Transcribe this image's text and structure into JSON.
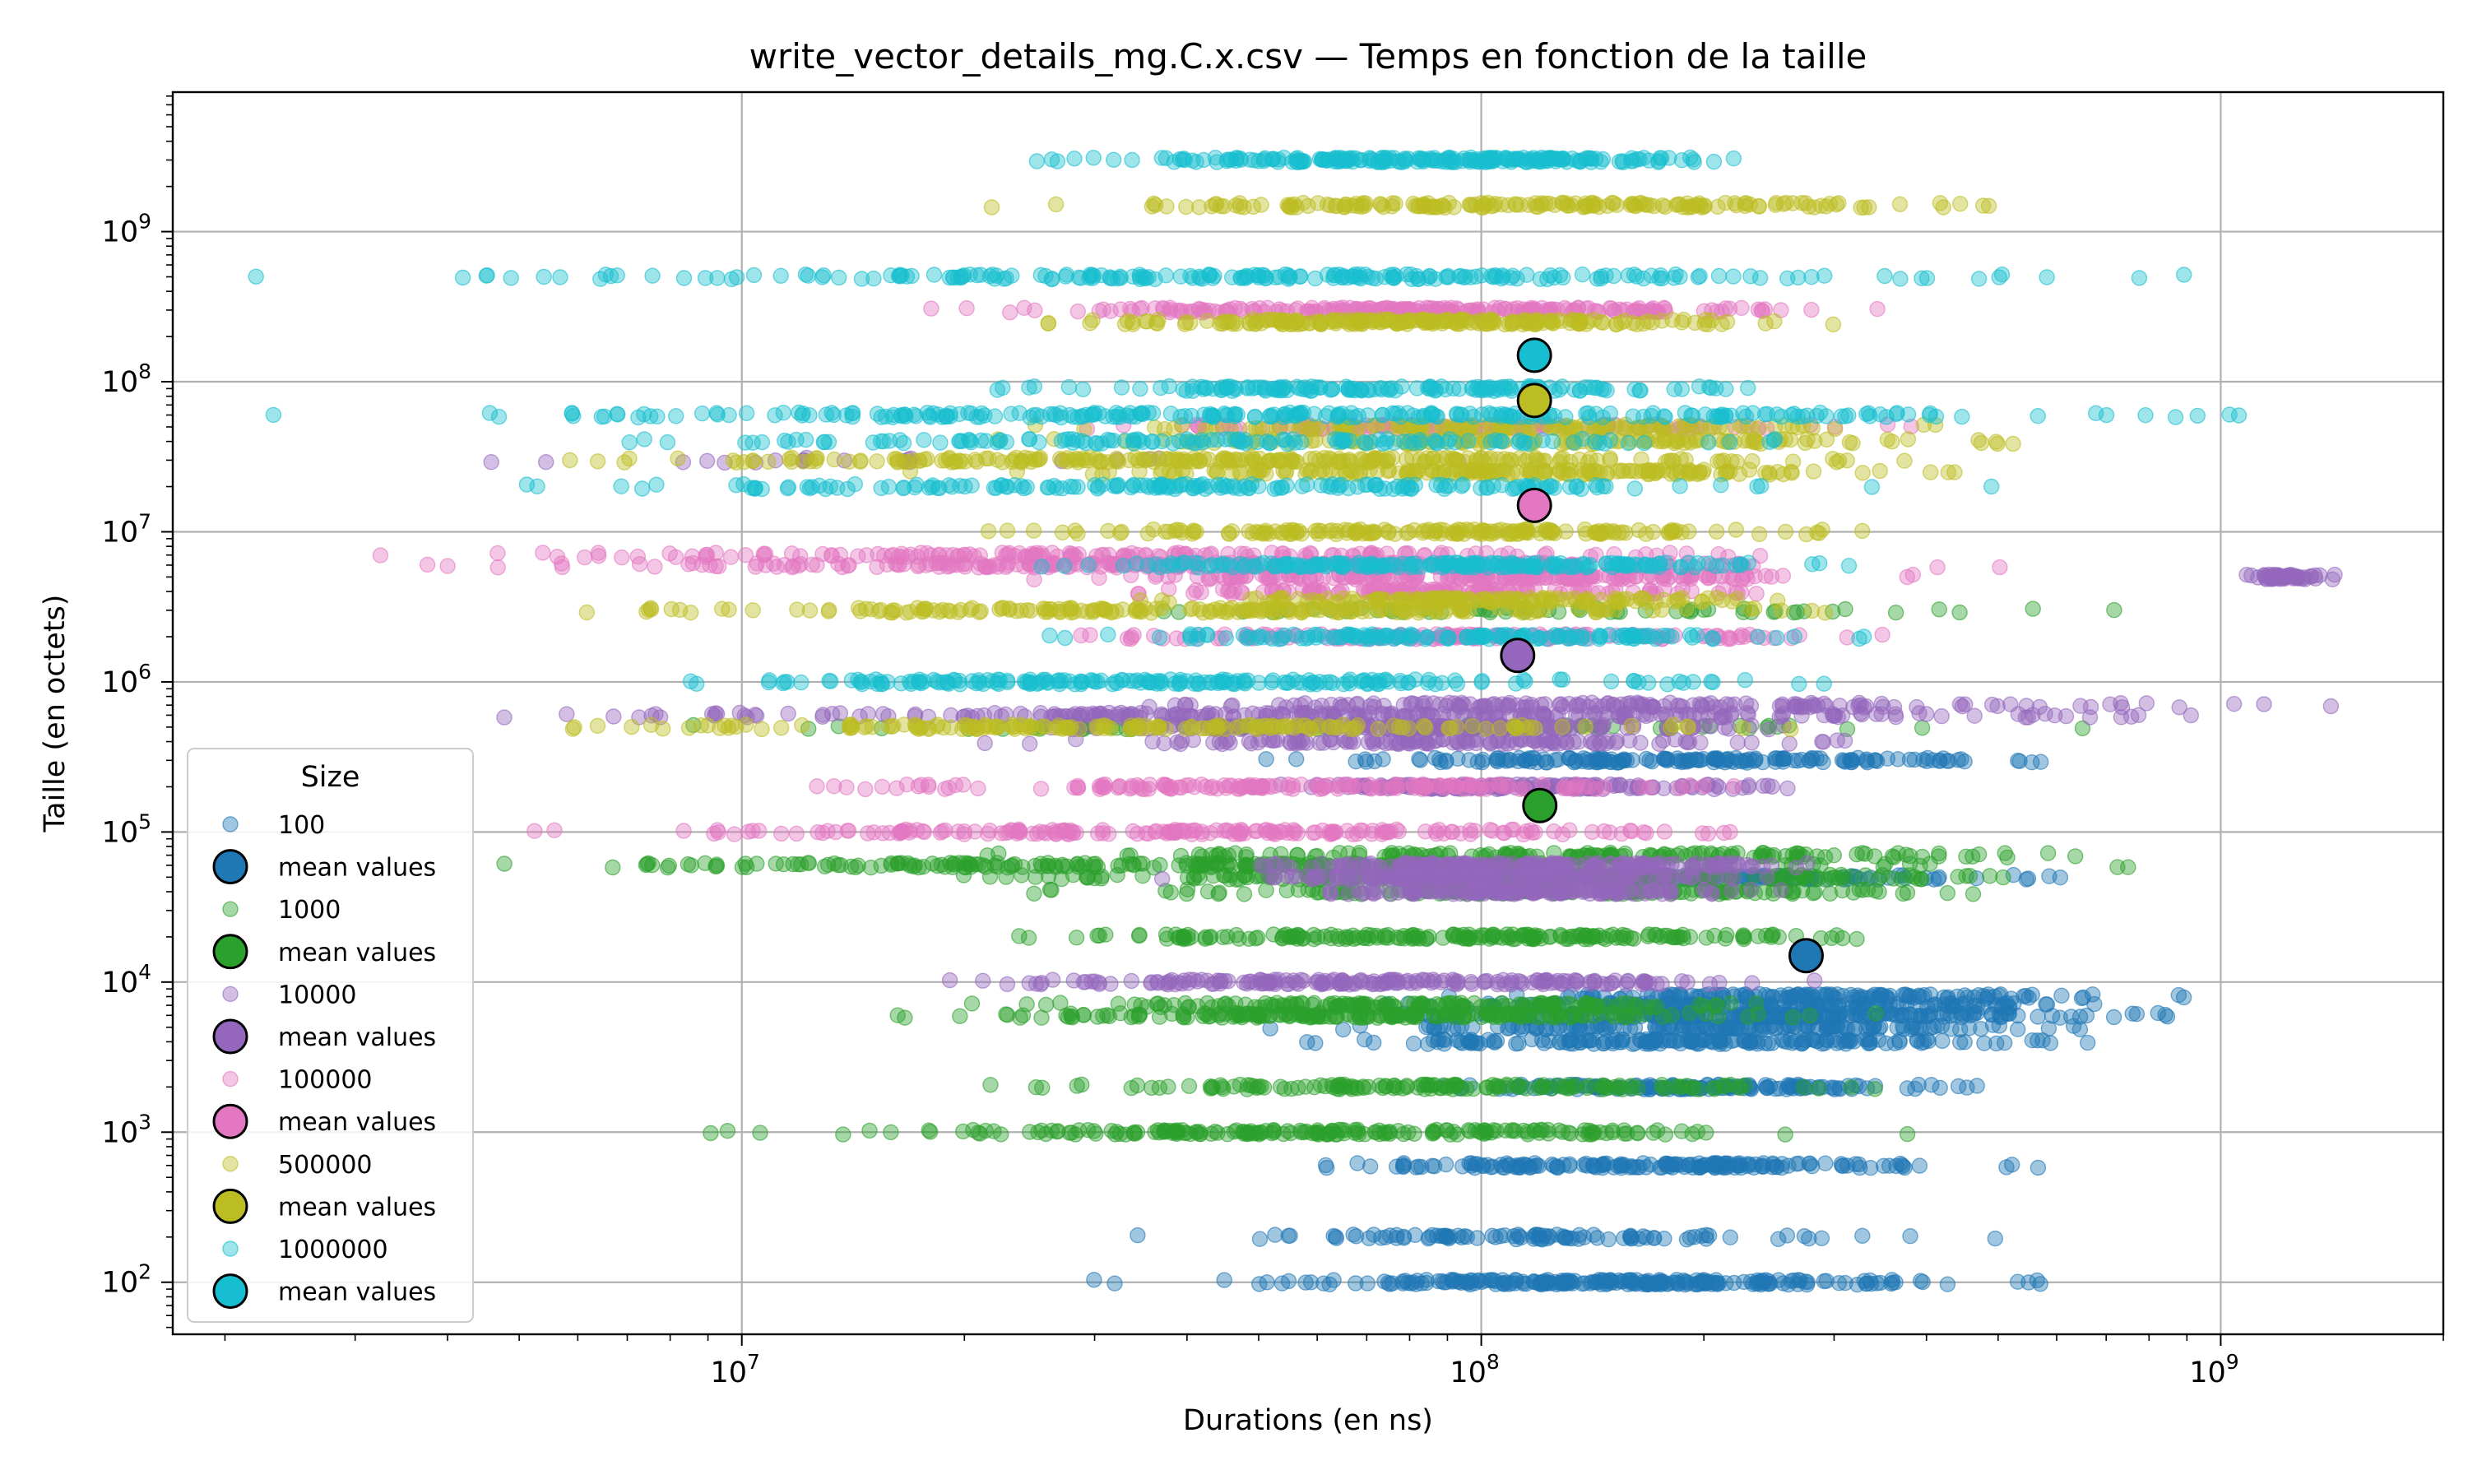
{
  "chart_data": {
    "type": "scatter",
    "title": "write_vector_details_mg.C.x.csv — Temps en fonction de la taille",
    "xlabel": "Durations (en ns)",
    "ylabel": "Taille (en octets)",
    "x_scale": "log",
    "y_scale": "log",
    "xlim": [
      1700000,
      2000000000
    ],
    "ylim": [
      45,
      8500000000
    ],
    "x_ticks": [
      {
        "value": 10000000,
        "base": "10",
        "exp": "7"
      },
      {
        "value": 100000000,
        "base": "10",
        "exp": "8"
      },
      {
        "value": 1000000000,
        "base": "10",
        "exp": "9"
      }
    ],
    "y_ticks": [
      {
        "value": 100,
        "base": "10",
        "exp": "2"
      },
      {
        "value": 1000,
        "base": "10",
        "exp": "3"
      },
      {
        "value": 10000,
        "base": "10",
        "exp": "4"
      },
      {
        "value": 100000,
        "base": "10",
        "exp": "5"
      },
      {
        "value": 1000000,
        "base": "10",
        "exp": "6"
      },
      {
        "value": 10000000,
        "base": "10",
        "exp": "7"
      },
      {
        "value": 100000000,
        "base": "10",
        "exp": "8"
      },
      {
        "value": 1000000000,
        "base": "10",
        "exp": "9"
      }
    ],
    "grid": true,
    "legend": {
      "title": "Size",
      "location": "lower-left"
    },
    "series": [
      {
        "name": "100",
        "mean_name": "mean values",
        "color": "#1f77b4",
        "mean": {
          "x": 275000000,
          "y": 15000
        },
        "bands": [
          {
            "y": 100,
            "x_min": 28000000,
            "x_max": 760000000,
            "n": 240
          },
          {
            "y": 200,
            "x_min": 30000000,
            "x_max": 560000000,
            "n": 100
          },
          {
            "y": 600,
            "x_min": 47000000,
            "x_max": 660000000,
            "n": 180
          },
          {
            "y": 2000,
            "x_min": 70000000,
            "x_max": 620000000,
            "n": 150
          },
          {
            "y": 4000,
            "x_min": 46000000,
            "x_max": 820000000,
            "n": 180
          },
          {
            "y": 5000,
            "x_min": 50000000,
            "x_max": 900000000,
            "n": 160
          },
          {
            "y": 6000,
            "x_min": 55000000,
            "x_max": 1050000000,
            "n": 220
          },
          {
            "y": 7000,
            "x_min": 60000000,
            "x_max": 950000000,
            "n": 160
          },
          {
            "y": 8000,
            "x_min": 80000000,
            "x_max": 900000000,
            "n": 140
          },
          {
            "y": 50000,
            "x_min": 70000000,
            "x_max": 700000000,
            "n": 120
          },
          {
            "y": 300000,
            "x_min": 50000000,
            "x_max": 780000000,
            "n": 180
          }
        ]
      },
      {
        "name": "1000",
        "mean_name": "mean values",
        "color": "#2ca02c",
        "mean": {
          "x": 120000000,
          "y": 150000
        },
        "bands": [
          {
            "y": 1000,
            "x_min": 8800000,
            "x_max": 380000000,
            "n": 200
          },
          {
            "y": 2000,
            "x_min": 16000000,
            "x_max": 420000000,
            "n": 150
          },
          {
            "y": 6000,
            "x_min": 15000000,
            "x_max": 360000000,
            "n": 200
          },
          {
            "y": 7000,
            "x_min": 20000000,
            "x_max": 300000000,
            "n": 150
          },
          {
            "y": 20000,
            "x_min": 16000000,
            "x_max": 480000000,
            "n": 200
          },
          {
            "y": 40000,
            "x_min": 20000000,
            "x_max": 700000000,
            "n": 160
          },
          {
            "y": 50000,
            "x_min": 15000000,
            "x_max": 900000000,
            "n": 220
          },
          {
            "y": 60000,
            "x_min": 2700000,
            "x_max": 960000000,
            "n": 240
          },
          {
            "y": 70000,
            "x_min": 20000000,
            "x_max": 900000000,
            "n": 160
          },
          {
            "y": 500000,
            "x_min": 4000000,
            "x_max": 950000000,
            "n": 80
          },
          {
            "y": 3000000,
            "x_min": 20000000,
            "x_max": 900000000,
            "n": 60
          }
        ]
      },
      {
        "name": "10000",
        "mean_name": "mean values",
        "color": "#9467bd",
        "mean": {
          "x": 112000000,
          "y": 1500000
        },
        "bands": [
          {
            "y": 10000,
            "x_min": 13000000,
            "x_max": 480000000,
            "n": 200
          },
          {
            "y": 40000,
            "x_min": 50000000,
            "x_max": 280000000,
            "n": 160
          },
          {
            "y": 50000,
            "x_min": 35000000,
            "x_max": 300000000,
            "n": 200
          },
          {
            "y": 60000,
            "x_min": 40000000,
            "x_max": 350000000,
            "n": 200
          },
          {
            "y": 200000,
            "x_min": 40000000,
            "x_max": 330000000,
            "n": 180
          },
          {
            "y": 400000,
            "x_min": 20000000,
            "x_max": 400000000,
            "n": 140
          },
          {
            "y": 500000,
            "x_min": 20000000,
            "x_max": 350000000,
            "n": 160
          },
          {
            "y": 600000,
            "x_min": 3000000,
            "x_max": 1500000000,
            "n": 260
          },
          {
            "y": 700000,
            "x_min": 20000000,
            "x_max": 1500000000,
            "n": 160
          },
          {
            "y": 5000000,
            "x_min": 1050000000,
            "x_max": 1450000000,
            "n": 60
          },
          {
            "y": 30000000,
            "x_min": 3000000,
            "x_max": 100000000,
            "n": 20
          }
        ]
      },
      {
        "name": "100000",
        "mean_name": "mean values",
        "color": "#e377c2",
        "mean": {
          "x": 118000000,
          "y": 15000000
        },
        "bands": [
          {
            "y": 100000,
            "x_min": 5000000,
            "x_max": 350000000,
            "n": 200
          },
          {
            "y": 200000,
            "x_min": 10000000,
            "x_max": 300000000,
            "n": 160
          },
          {
            "y": 2000000,
            "x_min": 16000000,
            "x_max": 500000000,
            "n": 160
          },
          {
            "y": 4000000,
            "x_min": 25000000,
            "x_max": 300000000,
            "n": 140
          },
          {
            "y": 5000000,
            "x_min": 20000000,
            "x_max": 500000000,
            "n": 200
          },
          {
            "y": 6000000,
            "x_min": 3000000,
            "x_max": 650000000,
            "n": 240
          },
          {
            "y": 7000000,
            "x_min": 2900000,
            "x_max": 400000000,
            "n": 160
          },
          {
            "y": 50000000,
            "x_min": 20000000,
            "x_max": 500000000,
            "n": 120
          },
          {
            "y": 300000000,
            "x_min": 18000000,
            "x_max": 420000000,
            "n": 220
          }
        ]
      },
      {
        "name": "500000",
        "mean_name": "mean values",
        "color": "#bcbd22",
        "mean": {
          "x": 118000000,
          "y": 75000000
        },
        "bands": [
          {
            "y": 500000,
            "x_min": 3600000,
            "x_max": 380000000,
            "n": 180
          },
          {
            "y": 3000000,
            "x_min": 4000000,
            "x_max": 420000000,
            "n": 200
          },
          {
            "y": 3500000,
            "x_min": 30000000,
            "x_max": 300000000,
            "n": 150
          },
          {
            "y": 10000000,
            "x_min": 18000000,
            "x_max": 400000000,
            "n": 180
          },
          {
            "y": 25000000,
            "x_min": 15000000,
            "x_max": 780000000,
            "n": 180
          },
          {
            "y": 30000000,
            "x_min": 3500000,
            "x_max": 600000000,
            "n": 240
          },
          {
            "y": 40000000,
            "x_min": 20000000,
            "x_max": 700000000,
            "n": 140
          },
          {
            "y": 50000000,
            "x_min": 20000000,
            "x_max": 500000000,
            "n": 140
          },
          {
            "y": 250000000,
            "x_min": 20000000,
            "x_max": 380000000,
            "n": 220
          },
          {
            "y": 1500000000,
            "x_min": 21000000,
            "x_max": 750000000,
            "n": 180
          }
        ]
      },
      {
        "name": "1000000",
        "mean_name": "mean values",
        "color": "#17becf",
        "mean": {
          "x": 118000000,
          "y": 150000000
        },
        "bands": [
          {
            "y": 1000000,
            "x_min": 3900000,
            "x_max": 400000000,
            "n": 200
          },
          {
            "y": 2000000,
            "x_min": 20000000,
            "x_max": 420000000,
            "n": 150
          },
          {
            "y": 6000000,
            "x_min": 20000000,
            "x_max": 400000000,
            "n": 200
          },
          {
            "y": 20000000,
            "x_min": 3500000,
            "x_max": 500000000,
            "n": 180
          },
          {
            "y": 40000000,
            "x_min": 5000000,
            "x_max": 480000000,
            "n": 140
          },
          {
            "y": 60000000,
            "x_min": 2200000,
            "x_max": 1400000000,
            "n": 260
          },
          {
            "y": 90000000,
            "x_min": 20000000,
            "x_max": 300000000,
            "n": 150
          },
          {
            "y": 500000000,
            "x_min": 2200000,
            "x_max": 1250000000,
            "n": 220
          },
          {
            "y": 3000000000,
            "x_min": 21000000,
            "x_max": 340000000,
            "n": 240
          }
        ]
      }
    ]
  }
}
